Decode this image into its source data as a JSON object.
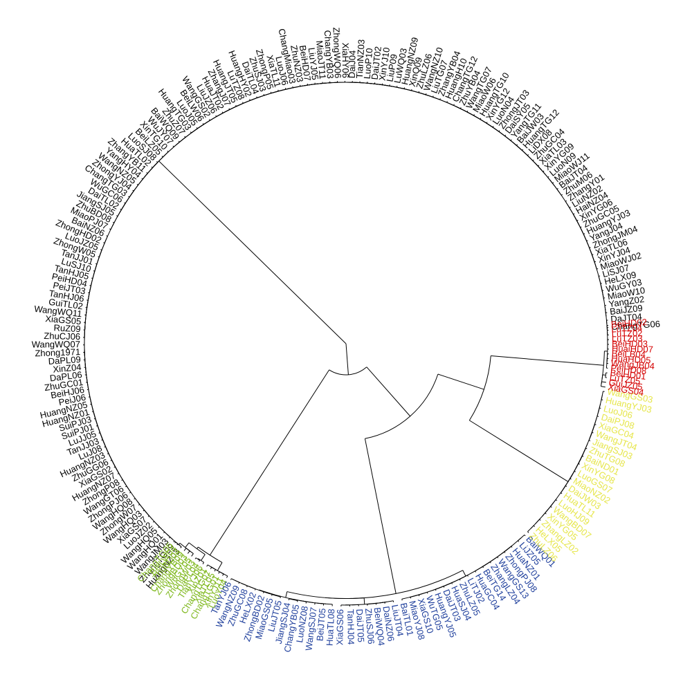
{
  "colors": {
    "black": "#000000",
    "red": "#d40000",
    "yellow": "#e6e64a",
    "blue": "#1f3f9c",
    "green": "#7fb81e"
  },
  "groups": [
    {
      "color": "black",
      "labels": [
        "ChangTG06",
        "DaJT04",
        "BaiJZ09",
        "YangZ02",
        "MiaoW10",
        "WuGY03",
        "HeLX09",
        "LiSJ07",
        "MiaoWJ02",
        "XinYJ04",
        "XiaTL06",
        "ZhongJM04",
        "YangJ04",
        "HuangYJ03",
        "ZhuGC05",
        "XinYG06",
        "HaiNZ04",
        "LiuNZ02",
        "ZhangY01",
        "ZhuM06",
        "BaiJT04",
        "MiaoWJ11",
        "LuoN09",
        "XinYG09",
        "XiaTL03",
        "ZhuGC04",
        "LiDX08",
        "HuangTG12",
        "BaiJW03",
        "YangTG11",
        "DaiSY05",
        "ZhongJT03",
        "LuoN04",
        "XinYG12",
        "HuangTG10",
        "MiaoW06",
        "WangTG07",
        "ZhuYB04",
        "ChangTG12",
        "HuangH10",
        "ZhangYB04",
        "LiuTG07",
        "WangNZ10",
        "ZhuLZ06",
        "XinQ09",
        "HuangNZ09",
        "LuWQ03",
        "LiuP09",
        "XinYJ10",
        "DaiJT02",
        "LuoP10",
        "TianNZ03",
        "DaiJ04",
        "XiaHY06",
        "ZhongWQ06",
        "ChangYB03",
        "MiaoJT11",
        "LiuYJ05",
        "BeiHD07",
        "ZhuNZ03",
        "ChangMiao03",
        "LuoJ06",
        "XiaTL11",
        "ZhongP05",
        "ZhuSJ03",
        "DaiTL04",
        "HuangHY02",
        "LuTZ08",
        "HuangJT05",
        "ZhangJ07",
        "HuaJT02",
        "LiuJZ06",
        "WangGS02",
        "BeiLW06",
        "LuoJ05",
        "HuangTG03",
        "ZhuZ07",
        "BaiWQ09",
        "WuJY07",
        "XinTG10",
        "BeiLZ05",
        "LuoSJ08",
        "HuaTL02",
        "ZhangYB11",
        "YangHY04",
        "WangNZ05",
        "ZhongYJ04",
        "ChangTG03",
        "WuGC06",
        "DaiTL02",
        "JiangSJ05",
        "ZhuBD08",
        "MiaoPJ07",
        "BaiNZ06",
        "ZhongHD02",
        "LuoJZ05",
        "ZhongW05",
        "TanJJ01",
        "LuSJ10",
        "TanHJ05",
        "PeiHD04",
        "PeiJT03",
        "TanHJ06",
        "GuiTL02",
        "WangWQ11",
        "XiaGS05",
        "RuZ09",
        "ZhuCJ06",
        "WangWQ07",
        "Zhong1971",
        "DaPL09",
        "XinZ04",
        "DaPL06",
        "ZhuGC01",
        "BeiHJ06",
        "PeiJ06",
        "HuangNZ05",
        "HuangNZ01",
        "SuiPJ03",
        "SuiPJ01",
        "LuJJ05",
        "TanJJ03",
        "LuJ08",
        "HuangNZ03",
        "ZhuGG06",
        "XiaGS02",
        "HuangNZ07",
        "ZhongP08",
        "WangGT06",
        "ZhongPJ06",
        "WangHQ08",
        "ZhongW07",
        "WangHQ03",
        "XiaGS07",
        "LuoJZ02",
        "WangHQ05",
        "WangHQ01",
        "WangJM03",
        "ZhongTG09",
        "HuangNZ03"
      ]
    },
    {
      "color": "green",
      "labels": [
        "ChangTG05",
        "BeiLW04",
        "ZhuBD04",
        "ChangYB09",
        "ZhongBD03",
        "WuGY05",
        "ZhongW03",
        "DaPL04",
        "TianYJ06",
        "XinZ01",
        "ChangTG07",
        "XiaTL05",
        "ChangTG01",
        "XinYJ11",
        "LuoY04"
      ]
    },
    {
      "color": "blue",
      "labels": [
        "TanYJ06",
        "WangNZ09",
        "ZhuGC08",
        "HeLX02",
        "ZhongBD02",
        "MiaoGS05",
        "LiuJT05",
        "JiangSJ04",
        "ChangYB05",
        "LuoNZ08",
        "WangSJ07",
        "BeiJT05",
        "HuaTL08",
        "XiaGS06",
        "TanHJ04",
        "DaiJT05",
        "ZhuSJ06",
        "BeiWQ04",
        "DaiNZ06",
        "LiuJT04",
        "BaiTL01",
        "MiaoYJ08",
        "XiaGS10",
        "WuTG05",
        "HuangYJ05",
        "DaiJT03",
        "HuaSJ04",
        "ZhuLZ05",
        "LiTJ02",
        "HuaGC04",
        "BeiTG14",
        "ZhangLZ04",
        "WangGS13",
        "ZhongPJ08",
        "HuaNZ01",
        "LiJZ05",
        "BaiWQ01"
      ]
    },
    {
      "color": "yellow",
      "labels": [
        "ZhuLZ06",
        "HeLX05",
        "ZhangLZ02",
        "XinYG05",
        "WangBD07",
        "LuoHJ09",
        "HuaTL11",
        "DaiJW03",
        "MiaoNZ02",
        "LuoGS07",
        "XinYG08",
        "BaiND01",
        "ZhuTG08",
        "JiangSJ03",
        "WangJT04",
        "XiaGC04",
        "DaiPJ08",
        "LuoJ06",
        "HuangYJ03",
        "WangGS03"
      ]
    },
    {
      "color": "red",
      "labels": [
        "XiaGS04",
        "GuiJZ05",
        "LuTZ05",
        "BeiHD01",
        "PeiHD08",
        "WangJB04",
        "HuaHD05",
        "BeiLB04",
        "HuaiHD07",
        "BeiHD03",
        "LuTZ03",
        "LuTZ02",
        "LuTZ04",
        "BeiHD02"
      ]
    }
  ]
}
